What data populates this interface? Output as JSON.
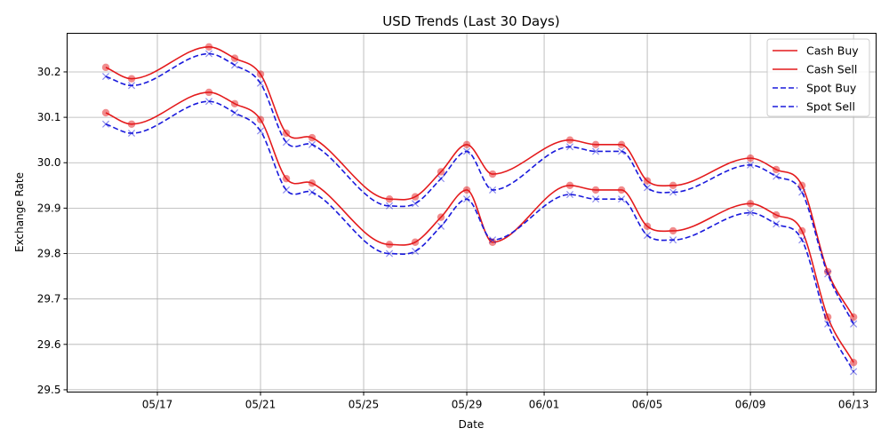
{
  "chart_data": {
    "type": "line",
    "title": "USD Trends (Last 30 Days)",
    "xlabel": "Date",
    "ylabel": "Exchange Rate",
    "ylim": [
      29.495,
      30.285
    ],
    "yticks": [
      29.5,
      29.6,
      29.7,
      29.8,
      29.9,
      30.0,
      30.1,
      30.2
    ],
    "xlim": [
      "2024-05-13T12:00",
      "2024-06-13T21:00"
    ],
    "xticks": [
      {
        "date": "2024-05-17",
        "label": "05/17"
      },
      {
        "date": "2024-05-21",
        "label": "05/21"
      },
      {
        "date": "2024-05-25",
        "label": "05/25"
      },
      {
        "date": "2024-05-29",
        "label": "05/29"
      },
      {
        "date": "2024-06-01",
        "label": "06/01"
      },
      {
        "date": "2024-06-05",
        "label": "06/05"
      },
      {
        "date": "2024-06-09",
        "label": "06/09"
      },
      {
        "date": "2024-06-13",
        "label": "06/13"
      }
    ],
    "grid": true,
    "legend_position": "top-right",
    "dates": [
      "2024-05-15",
      "2024-05-16",
      "2024-05-19",
      "2024-05-20",
      "2024-05-21",
      "2024-05-22",
      "2024-05-23",
      "2024-05-26",
      "2024-05-27",
      "2024-05-28",
      "2024-05-29",
      "2024-05-30",
      "2024-06-02",
      "2024-06-03",
      "2024-06-04",
      "2024-06-05",
      "2024-06-06",
      "2024-06-09",
      "2024-06-10",
      "2024-06-11",
      "2024-06-12",
      "2024-06-13"
    ],
    "series": [
      {
        "name": "Cash Buy",
        "color": "#e41a1c",
        "dash": false,
        "marker": "circle",
        "values": [
          30.11,
          30.085,
          30.155,
          30.13,
          30.095,
          29.965,
          29.955,
          29.82,
          29.825,
          29.88,
          29.94,
          29.825,
          29.95,
          29.94,
          29.94,
          29.86,
          29.85,
          29.91,
          29.885,
          29.85,
          29.66,
          29.56
        ]
      },
      {
        "name": "Cash Sell",
        "color": "#e41a1c",
        "dash": false,
        "marker": "circle",
        "values": [
          30.21,
          30.185,
          30.255,
          30.23,
          30.195,
          30.065,
          30.055,
          29.92,
          29.925,
          29.98,
          30.04,
          29.975,
          30.05,
          30.04,
          30.04,
          29.96,
          29.95,
          30.01,
          29.985,
          29.95,
          29.76,
          29.66
        ]
      },
      {
        "name": "Spot Buy",
        "color": "#1a1adc",
        "dash": true,
        "marker": "x",
        "values": [
          30.085,
          30.065,
          30.135,
          30.11,
          30.07,
          29.94,
          29.935,
          29.8,
          29.805,
          29.86,
          29.92,
          29.83,
          29.93,
          29.92,
          29.92,
          29.84,
          29.83,
          29.89,
          29.865,
          29.83,
          29.645,
          29.54
        ]
      },
      {
        "name": "Spot Sell",
        "color": "#1a1adc",
        "dash": true,
        "marker": "x",
        "values": [
          30.19,
          30.17,
          30.24,
          30.215,
          30.175,
          30.045,
          30.04,
          29.905,
          29.91,
          29.965,
          30.025,
          29.94,
          30.035,
          30.025,
          30.025,
          29.945,
          29.935,
          29.995,
          29.97,
          29.935,
          29.755,
          29.645
        ]
      }
    ]
  }
}
